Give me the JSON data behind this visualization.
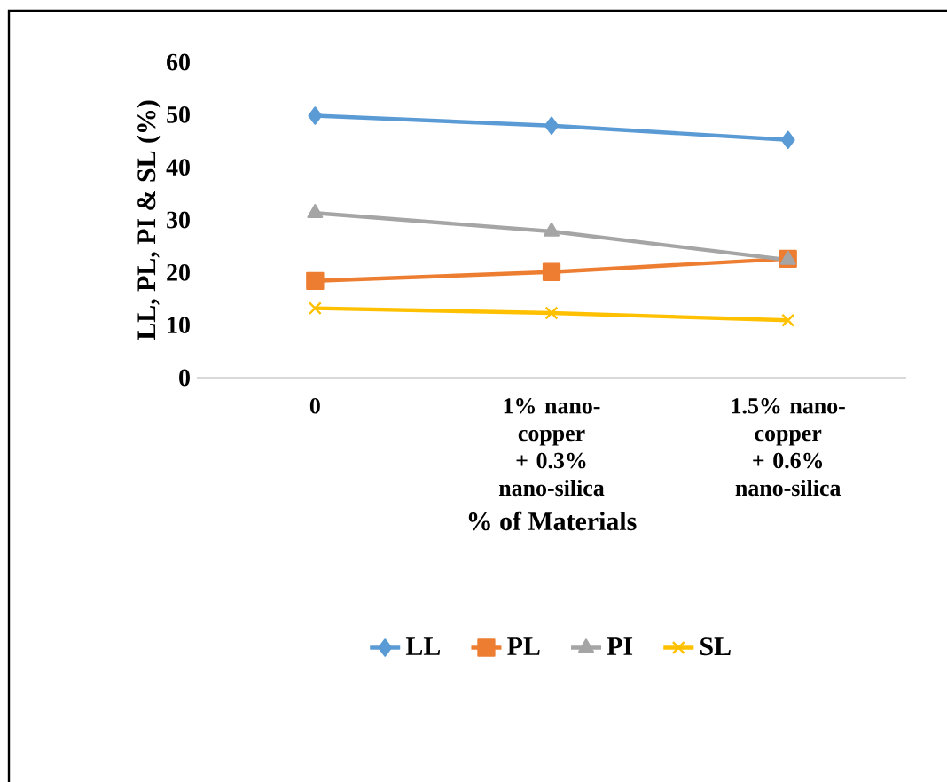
{
  "chart_data": {
    "type": "line",
    "xlabel": "% of Materials",
    "ylabel": "LL, PL, PI & SL (%)",
    "categories": [
      "0",
      "1% nano-copper + 0.3% nano-silica",
      "1.5% nano-copper + 0.6% nano-silica"
    ],
    "series": [
      {
        "name": "LL",
        "color": "#5b9bd5",
        "marker": "diamond",
        "values": [
          49.8,
          47.9,
          45.2
        ]
      },
      {
        "name": "PL",
        "color": "#ed7d31",
        "marker": "square",
        "values": [
          18.4,
          20.1,
          22.6
        ]
      },
      {
        "name": "PI",
        "color": "#a5a5a5",
        "marker": "triangle",
        "values": [
          31.3,
          27.8,
          22.4
        ]
      },
      {
        "name": "SL",
        "color": "#ffc000",
        "marker": "cross",
        "values": [
          13.2,
          12.3,
          10.9
        ]
      }
    ],
    "ylim": [
      0,
      60
    ],
    "yticks": [
      0,
      10,
      20,
      30,
      40,
      50,
      60
    ],
    "grid": false,
    "legend": "bottom",
    "line_style": "solid"
  }
}
